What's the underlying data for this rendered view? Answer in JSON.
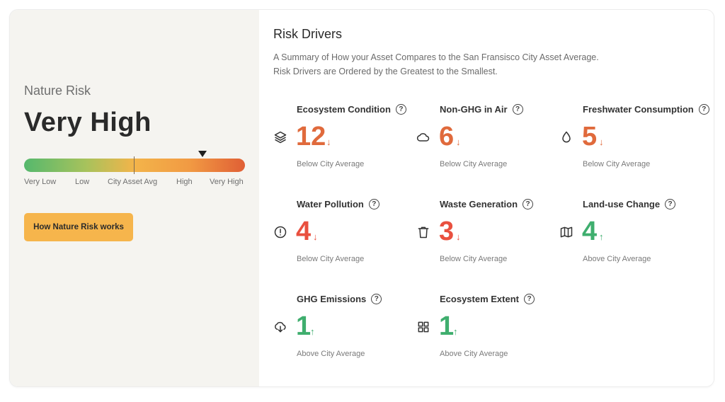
{
  "nature_risk": {
    "label": "Nature Risk",
    "value": "Very High",
    "scale_labels": [
      "Very Low",
      "Low",
      "City Asset Avg",
      "High",
      "Very High"
    ],
    "button_label": "How Nature Risk works"
  },
  "risk_drivers": {
    "title": "Risk Drivers",
    "subtitle_line1": "A Summary of How your Asset Compares to the San Fransisco City Asset Average.",
    "subtitle_line2": "Risk Drivers are Ordered by the Greatest to the Smallest.",
    "help_glyph": "?",
    "items": [
      {
        "name": "Ecosystem Condition",
        "value": "12",
        "arrow": "↓",
        "status": "Below City Average",
        "icon": "layers-icon",
        "color": "#e06a3c"
      },
      {
        "name": "Non-GHG in Air",
        "value": "6",
        "arrow": "↓",
        "status": "Below City Average",
        "icon": "cloud-icon",
        "color": "#e06a3c"
      },
      {
        "name": "Freshwater Consumption",
        "value": "5",
        "arrow": "↓",
        "status": "Below City Average",
        "icon": "droplet-icon",
        "color": "#e06a3c"
      },
      {
        "name": "Water Pollution",
        "value": "4",
        "arrow": "↓",
        "status": "Below City Average",
        "icon": "alert-circle-icon",
        "color": "#e9503f"
      },
      {
        "name": "Waste Generation",
        "value": "3",
        "arrow": "↓",
        "status": "Below City Average",
        "icon": "trash-icon",
        "color": "#e9503f"
      },
      {
        "name": "Land-use Change",
        "value": "4",
        "arrow": "↑",
        "status": "Above City Average",
        "icon": "map-icon",
        "color": "#3fae6e"
      },
      {
        "name": "GHG Emissions",
        "value": "1",
        "arrow": "↑",
        "status": "Above City Average",
        "icon": "cloud-download-icon",
        "color": "#3fae6e"
      },
      {
        "name": "Ecosystem Extent",
        "value": "1",
        "arrow": "↑",
        "status": "Above City Average",
        "icon": "grid-icon",
        "color": "#3fae6e"
      }
    ]
  }
}
